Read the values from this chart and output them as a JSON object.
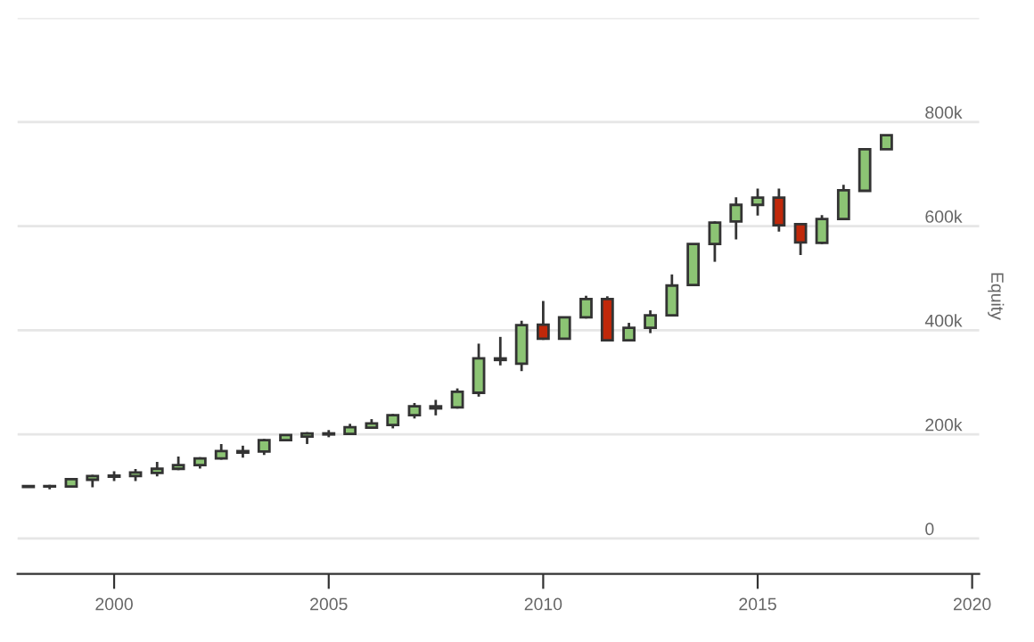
{
  "chart_data": {
    "type": "candlestick",
    "ylabel": "Equity",
    "x": [
      "1998-01",
      "1998-07",
      "1999-01",
      "1999-07",
      "2000-01",
      "2000-07",
      "2001-01",
      "2001-07",
      "2002-01",
      "2002-07",
      "2003-01",
      "2003-07",
      "2004-01",
      "2004-07",
      "2005-01",
      "2005-07",
      "2006-01",
      "2006-07",
      "2007-01",
      "2007-07",
      "2008-01",
      "2008-07",
      "2009-01",
      "2009-07",
      "2010-01",
      "2010-07",
      "2011-01",
      "2011-07",
      "2012-01",
      "2012-07",
      "2013-01",
      "2013-07",
      "2014-01",
      "2014-07",
      "2015-01",
      "2015-07",
      "2016-01",
      "2016-07",
      "2017-01",
      "2017-07",
      "2018-01"
    ],
    "ohlc": [
      [
        99000,
        101000,
        99000,
        101000
      ],
      [
        100000,
        101000,
        97000,
        101000
      ],
      [
        100000,
        114000,
        100000,
        114000
      ],
      [
        113000,
        120000,
        101000,
        120000
      ],
      [
        119000,
        127000,
        113000,
        121000
      ],
      [
        120000,
        131000,
        113000,
        127000
      ],
      [
        126000,
        145000,
        122000,
        134000
      ],
      [
        134000,
        155000,
        134000,
        141000
      ],
      [
        141000,
        154000,
        137000,
        154000
      ],
      [
        154000,
        179000,
        154000,
        168000
      ],
      [
        165000,
        176000,
        158000,
        168000
      ],
      [
        167000,
        189000,
        163000,
        189000
      ],
      [
        189000,
        199000,
        189000,
        199000
      ],
      [
        196000,
        202000,
        184000,
        202000
      ],
      [
        200000,
        206000,
        197000,
        202000
      ],
      [
        201000,
        218000,
        201000,
        214000
      ],
      [
        213000,
        227000,
        213000,
        221000
      ],
      [
        218000,
        237000,
        214000,
        237000
      ],
      [
        237000,
        258000,
        233000,
        254000
      ],
      [
        250000,
        264000,
        239000,
        254000
      ],
      [
        252000,
        286000,
        252000,
        282000
      ],
      [
        280000,
        372000,
        275000,
        346000
      ],
      [
        343000,
        385000,
        335000,
        346000
      ],
      [
        336000,
        416000,
        324000,
        410000
      ],
      [
        411000,
        454000,
        384000,
        384000
      ],
      [
        384000,
        425000,
        384000,
        425000
      ],
      [
        425000,
        464000,
        425000,
        460000
      ],
      [
        460000,
        463000,
        381000,
        381000
      ],
      [
        381000,
        412000,
        381000,
        405000
      ],
      [
        405000,
        436000,
        397000,
        429000
      ],
      [
        429000,
        505000,
        429000,
        486000
      ],
      [
        487000,
        566000,
        487000,
        566000
      ],
      [
        566000,
        607000,
        534000,
        607000
      ],
      [
        609000,
        653000,
        577000,
        641000
      ],
      [
        641000,
        670000,
        623000,
        655000
      ],
      [
        655000,
        670000,
        592000,
        602000
      ],
      [
        604000,
        604000,
        547000,
        569000
      ],
      [
        568000,
        619000,
        568000,
        614000
      ],
      [
        614000,
        677000,
        614000,
        669000
      ],
      [
        668000,
        748000,
        668000,
        748000
      ],
      [
        748000,
        775000,
        748000,
        775000
      ]
    ],
    "colors": [
      "#8cc474",
      "#8cc474",
      "#8cc474",
      "#8cc474",
      "#8cc474",
      "#8cc474",
      "#8cc474",
      "#8cc474",
      "#8cc474",
      "#8cc474",
      "#8cc474",
      "#8cc474",
      "#8cc474",
      "#8cc474",
      "#8cc474",
      "#8cc474",
      "#8cc474",
      "#8cc474",
      "#8cc474",
      "#8cc474",
      "#8cc474",
      "#8cc474",
      "#8cc474",
      "#8cc474",
      "#c0280a",
      "#8cc474",
      "#8cc474",
      "#c0280a",
      "#8cc474",
      "#8cc474",
      "#8cc474",
      "#8cc474",
      "#8cc474",
      "#8cc474",
      "#8cc474",
      "#c0280a",
      "#c0280a",
      "#8cc474",
      "#8cc474",
      "#8cc474",
      "#8cc474"
    ],
    "xlim": [
      "1997-10",
      "2020-03"
    ],
    "xticks": [
      {
        "value": "2000-01",
        "label": "2000"
      },
      {
        "value": "2005-01",
        "label": "2005"
      },
      {
        "value": "2010-01",
        "label": "2010"
      },
      {
        "value": "2015-01",
        "label": "2015"
      },
      {
        "value": "2020-01",
        "label": "2020"
      }
    ],
    "ylim": [
      -68000,
      1000000
    ],
    "yticks": [
      {
        "value": 0,
        "label": "0"
      },
      {
        "value": 200000,
        "label": "200k"
      },
      {
        "value": 400000,
        "label": "400k"
      },
      {
        "value": 600000,
        "label": "600k"
      },
      {
        "value": 800000,
        "label": "800k"
      },
      {
        "value": 1000000,
        "label": null
      }
    ],
    "grid": "y",
    "legend": false
  }
}
